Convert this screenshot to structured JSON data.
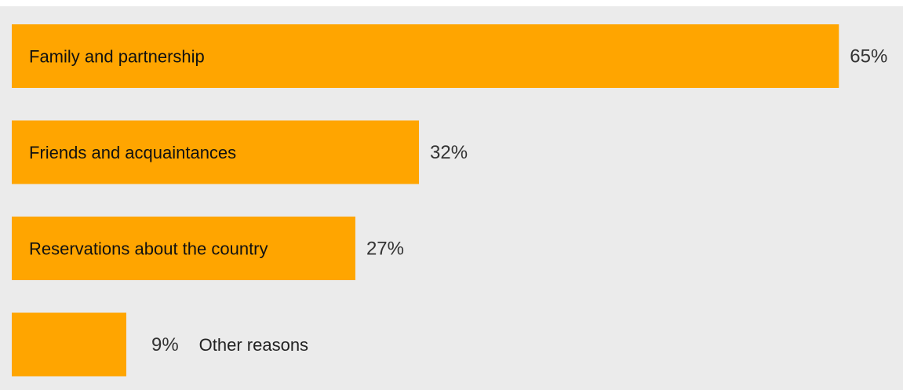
{
  "colors": {
    "bar": "#ffa500",
    "panel": "#ebebeb"
  },
  "chart_data": {
    "type": "bar",
    "orientation": "horizontal",
    "categories": [
      "Family and partnership",
      "Friends and acquaintances",
      "Reservations about the country",
      "Other reasons"
    ],
    "values": [
      65,
      32,
      27,
      9
    ],
    "value_labels": [
      "65%",
      "32%",
      "27%",
      "9%"
    ],
    "unit": "%",
    "xlim": [
      0,
      100
    ],
    "grid": false,
    "legend": "none"
  }
}
